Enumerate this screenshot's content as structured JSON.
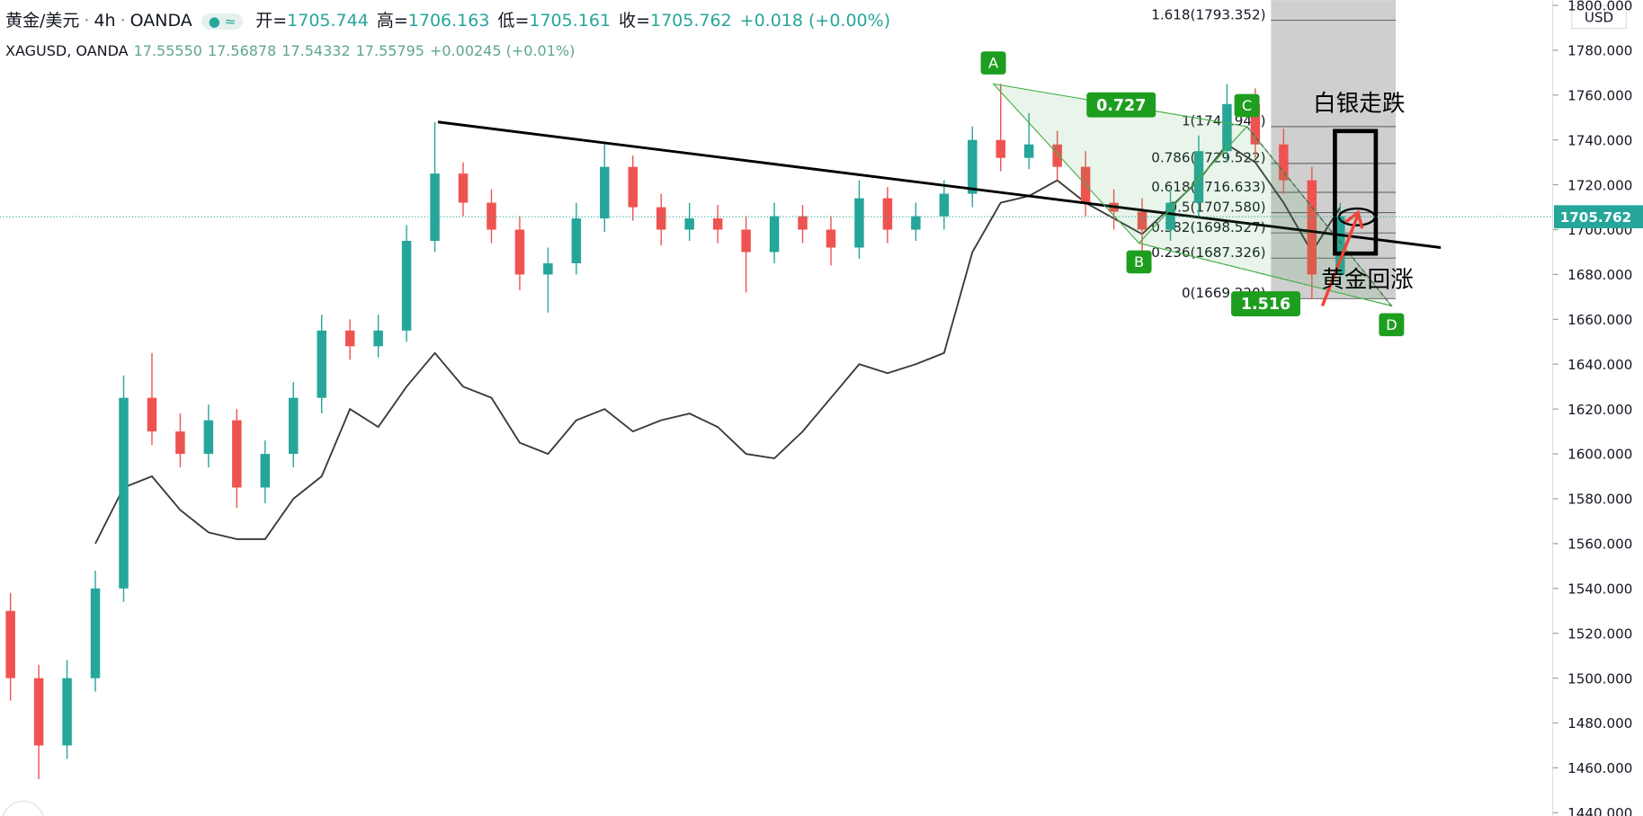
{
  "header": {
    "symbol": "黄金/美元",
    "interval": "4h",
    "exchange": "OANDA",
    "open_label": "开",
    "open": 1705.744,
    "high_label": "高",
    "high": 1706.163,
    "low_label": "低",
    "low": 1705.161,
    "close_label": "收",
    "close": 1705.762,
    "change": "+0.018 (+0.00%)"
  },
  "overlay_legend": {
    "symbol": "XAGUSD, OANDA",
    "values": [
      "17.55550",
      "17.56878",
      "17.54332",
      "17.55795",
      "+0.00245 (+0.01%)"
    ]
  },
  "chart_data": {
    "type": "candlestick",
    "currency": "USD",
    "categories": [
      null,
      null,
      null,
      null,
      null,
      null,
      null,
      null,
      null,
      null,
      null,
      null,
      null,
      null,
      null,
      null,
      null,
      null,
      null,
      null,
      null,
      null,
      null,
      null,
      null,
      null,
      null,
      null,
      null,
      null,
      null,
      null,
      null,
      null,
      null,
      null,
      null,
      null,
      null,
      null,
      null,
      null,
      null,
      null,
      null,
      null,
      null,
      null
    ],
    "open": [
      1530,
      1500,
      1470,
      1500,
      1540,
      1625,
      1610,
      1600,
      1615,
      1585,
      1600,
      1625,
      1655,
      1648,
      1655,
      1695,
      1725,
      1712,
      1700,
      1680,
      1685,
      1705,
      1728,
      1710,
      1700,
      1705,
      1700,
      1690,
      1706,
      1700,
      1692,
      1714,
      1700,
      1706,
      1716,
      1740,
      1732,
      1738,
      1728,
      1712,
      1708,
      1700,
      1712,
      1735,
      1756,
      1738,
      1722,
      1680
    ],
    "high": [
      1538,
      1506,
      1508,
      1548,
      1635,
      1645,
      1618,
      1622,
      1620,
      1606,
      1632,
      1662,
      1660,
      1662,
      1702,
      1748,
      1730,
      1718,
      1706,
      1692,
      1712,
      1738,
      1733,
      1716,
      1712,
      1711,
      1706,
      1712,
      1711,
      1706,
      1722,
      1719,
      1712,
      1722,
      1746,
      1765,
      1752,
      1744,
      1735,
      1718,
      1714,
      1718,
      1742,
      1765,
      1763,
      1745,
      1728,
      1712
    ],
    "low": [
      1490,
      1455,
      1464,
      1494,
      1534,
      1604,
      1594,
      1594,
      1576,
      1578,
      1594,
      1618,
      1642,
      1643,
      1650,
      1690,
      1706,
      1694,
      1673,
      1663,
      1680,
      1699,
      1704,
      1693,
      1695,
      1694,
      1672,
      1685,
      1694,
      1684,
      1687,
      1694,
      1695,
      1700,
      1710,
      1726,
      1727,
      1722,
      1706,
      1700,
      1690,
      1695,
      1706,
      1730,
      1732,
      1716,
      1669,
      1675
    ],
    "close": [
      1500,
      1470,
      1500,
      1540,
      1625,
      1610,
      1600,
      1615,
      1585,
      1600,
      1625,
      1655,
      1648,
      1655,
      1695,
      1725,
      1712,
      1700,
      1680,
      1685,
      1705,
      1728,
      1710,
      1700,
      1705,
      1700,
      1690,
      1706,
      1700,
      1692,
      1714,
      1700,
      1706,
      1716,
      1740,
      1732,
      1738,
      1728,
      1712,
      1708,
      1700,
      1712,
      1735,
      1756,
      1738,
      1722,
      1680,
      1706
    ],
    "up_color": "#26a69a",
    "down_color": "#ef5350",
    "overlay": {
      "type": "line",
      "color": "#3a3a3a",
      "axis": "y2",
      "values": [
        null,
        null,
        null,
        14.7,
        15.2,
        15.3,
        15.0,
        14.8,
        14.74,
        14.74,
        15.1,
        15.3,
        15.9,
        15.74,
        16.1,
        16.4,
        16.1,
        16.0,
        15.6,
        15.5,
        15.8,
        15.9,
        15.7,
        15.8,
        15.86,
        15.74,
        15.5,
        15.46,
        15.7,
        16.0,
        16.3,
        16.22,
        16.3,
        16.4,
        17.3,
        17.74,
        17.8,
        17.94,
        17.74,
        17.6,
        17.46,
        17.7,
        17.94,
        18.26,
        18.1,
        17.74,
        17.3,
        17.7
      ]
    },
    "ylim": [
      1440,
      1800
    ],
    "y2lim": [
      12.3,
      19.5
    ],
    "yticks": [
      {
        "value": 1800,
        "label": "1800.000"
      },
      {
        "value": 1780,
        "label": "1780.000"
      },
      {
        "value": 1760,
        "label": "1760.000"
      },
      {
        "value": 1740,
        "label": "1740.000"
      },
      {
        "value": 1720,
        "label": "1720.000"
      },
      {
        "value": 1700,
        "label": "1700.000"
      },
      {
        "value": 1680,
        "label": "1680.000"
      },
      {
        "value": 1660,
        "label": "1660.000"
      },
      {
        "value": 1640,
        "label": "1640.000"
      },
      {
        "value": 1620,
        "label": "1620.000"
      },
      {
        "value": 1600,
        "label": "1600.000"
      },
      {
        "value": 1580,
        "label": "1580.000"
      },
      {
        "value": 1560,
        "label": "1560.000"
      },
      {
        "value": 1540,
        "label": "1540.000"
      },
      {
        "value": 1520,
        "label": "1520.000"
      },
      {
        "value": 1500,
        "label": "1500.000"
      },
      {
        "value": 1480,
        "label": "1480.000"
      },
      {
        "value": 1460,
        "label": "1460.000"
      },
      {
        "value": 1440,
        "label": "1440.000"
      }
    ],
    "last_price": 1705.762,
    "fibonacci": [
      {
        "value": 1793.352,
        "label": "1.618(1793.352)"
      },
      {
        "value": 1745.94,
        "label": "1(1745.940)"
      },
      {
        "value": 1729.522,
        "label": "0.786(1729.522)"
      },
      {
        "value": 1716.633,
        "label": "0.618(1716.633)"
      },
      {
        "value": 1707.58,
        "label": "0.5(1707.580)"
      },
      {
        "value": 1698.527,
        "label": "0.382(1698.527)"
      },
      {
        "value": 1687.326,
        "label": "0.236(1687.326)"
      },
      {
        "value": 1669.22,
        "label": "0(1669.220)"
      }
    ],
    "trendline": [
      1748,
      1692
    ],
    "pattern": {
      "points": [
        {
          "label": "A",
          "value": 1765
        },
        {
          "label": "B",
          "value": 1694
        },
        {
          "label": "C",
          "value": 1746
        },
        {
          "label": "D",
          "value": 1666
        }
      ],
      "ratios": [
        0.727,
        1.516
      ]
    },
    "annotations": [
      "白银走跌",
      "黄金回涨"
    ]
  }
}
